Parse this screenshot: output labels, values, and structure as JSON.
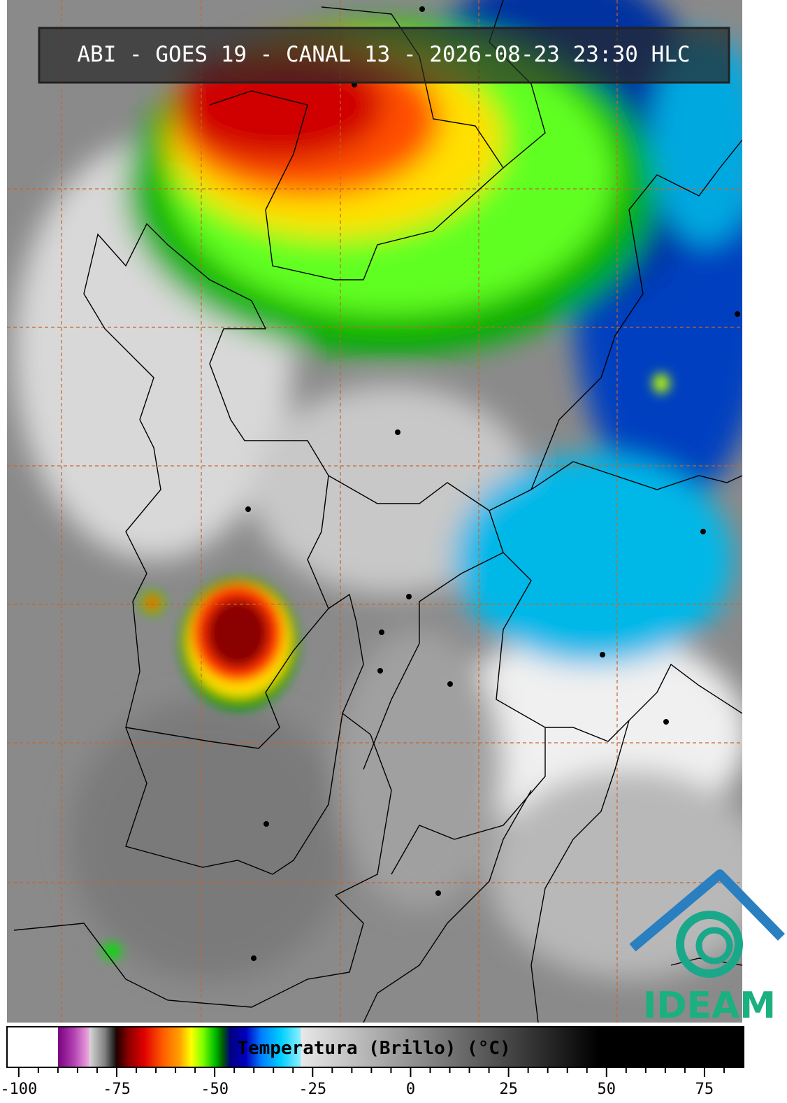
{
  "header": {
    "title": "ABI - GOES 19 - CANAL 13 - 2026-08-23 23:30 HLC"
  },
  "colorbar": {
    "label": "Temperatura (Brillo) (°C)",
    "xlim": [
      -103,
      85
    ],
    "xticks": [
      -100,
      -75,
      -50,
      -25,
      0,
      25,
      50,
      75
    ],
    "xticks_minor": [
      -95,
      -90,
      -85,
      -80,
      -70,
      -65,
      -60,
      -55,
      -45,
      -40,
      -35,
      -30,
      -20,
      -15,
      -10,
      -5,
      5,
      10,
      15,
      20,
      30,
      35,
      40,
      45,
      55,
      60,
      65,
      70,
      80
    ],
    "stops": [
      {
        "value": -103,
        "color": "#ffffff"
      },
      {
        "value": -90,
        "color": "#ffffff"
      },
      {
        "value": -90,
        "color": "#7a0080"
      },
      {
        "value": -86,
        "color": "#b040b0"
      },
      {
        "value": -82,
        "color": "#f0a8e0"
      },
      {
        "value": -82,
        "color": "#d8d8d8"
      },
      {
        "value": -78,
        "color": "#808080"
      },
      {
        "value": -76,
        "color": "#303030"
      },
      {
        "value": -75,
        "color": "#200000"
      },
      {
        "value": -72,
        "color": "#8b0000"
      },
      {
        "value": -68,
        "color": "#e00000"
      },
      {
        "value": -63,
        "color": "#ff6000"
      },
      {
        "value": -59,
        "color": "#ffa000"
      },
      {
        "value": -56,
        "color": "#ffff00"
      },
      {
        "value": -53,
        "color": "#80ff00"
      },
      {
        "value": -50,
        "color": "#00c000"
      },
      {
        "value": -48,
        "color": "#006000"
      },
      {
        "value": -46,
        "color": "#000080"
      },
      {
        "value": -42,
        "color": "#0000c0"
      },
      {
        "value": -38,
        "color": "#0080ff"
      },
      {
        "value": -33,
        "color": "#00d0ff"
      },
      {
        "value": -28,
        "color": "#90f0ff"
      },
      {
        "value": -28,
        "color": "#e8e8e8"
      },
      {
        "value": 48,
        "color": "#000000"
      },
      {
        "value": 85,
        "color": "#000000"
      }
    ]
  },
  "logo": {
    "text": "IDEAM"
  }
}
